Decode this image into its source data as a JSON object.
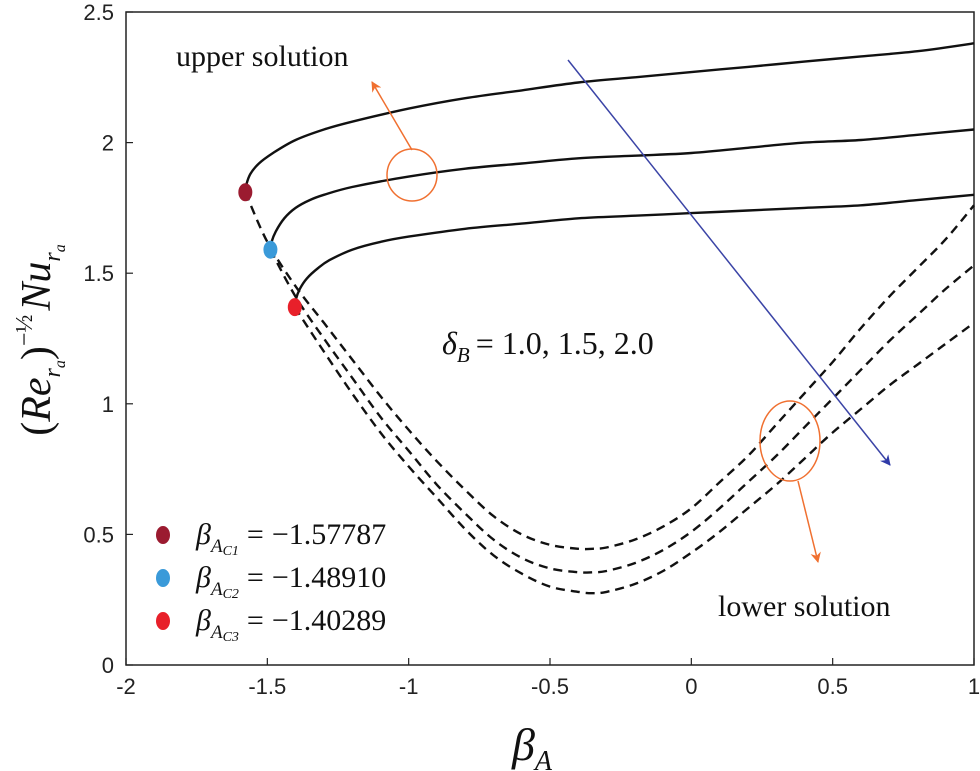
{
  "chart_data": {
    "type": "line",
    "xlabel": "β_A",
    "ylabel": "(Re_ra)^(-1/2) Nu_ra",
    "xlim": [
      -2,
      1
    ],
    "ylim": [
      0,
      2.5
    ],
    "xticks": [
      -2,
      -1.5,
      -1,
      -0.5,
      0,
      0.5,
      1
    ],
    "xtick_labels": [
      "-2",
      "-1.5",
      "-1",
      "-0.5",
      "0",
      "0.5",
      "1"
    ],
    "yticks": [
      0,
      0.5,
      1,
      1.5,
      2,
      2.5
    ],
    "ytick_labels": [
      "0",
      "0.5",
      "1",
      "1.5",
      "2",
      "2.5"
    ],
    "grid": false,
    "series": [
      {
        "name": "upper δB=1.0",
        "style": "solid",
        "x": [
          -1.5779,
          -1.574,
          -1.56,
          -1.53,
          -1.48,
          -1.4,
          -1.3,
          -1.2,
          -1.0,
          -0.8,
          -0.6,
          -0.4,
          -0.2,
          0,
          0.2,
          0.4,
          0.6,
          0.8,
          1.0
        ],
        "y": [
          1.81,
          1.84,
          1.88,
          1.92,
          1.96,
          2.01,
          2.05,
          2.08,
          2.13,
          2.17,
          2.2,
          2.23,
          2.25,
          2.27,
          2.29,
          2.31,
          2.33,
          2.35,
          2.38
        ]
      },
      {
        "name": "upper δB=1.5",
        "style": "solid",
        "x": [
          -1.4891,
          -1.485,
          -1.47,
          -1.44,
          -1.4,
          -1.35,
          -1.3,
          -1.2,
          -1.0,
          -0.8,
          -0.6,
          -0.4,
          -0.2,
          0,
          0.2,
          0.4,
          0.6,
          0.8,
          1.0
        ],
        "y": [
          1.59,
          1.62,
          1.66,
          1.71,
          1.75,
          1.78,
          1.8,
          1.83,
          1.87,
          1.9,
          1.92,
          1.94,
          1.95,
          1.96,
          1.98,
          2.0,
          2.01,
          2.03,
          2.05
        ]
      },
      {
        "name": "upper δB=2.0",
        "style": "solid",
        "x": [
          -1.4029,
          -1.399,
          -1.385,
          -1.36,
          -1.32,
          -1.28,
          -1.2,
          -1.1,
          -1.0,
          -0.8,
          -0.6,
          -0.4,
          -0.2,
          0,
          0.2,
          0.4,
          0.6,
          0.8,
          1.0
        ],
        "y": [
          1.37,
          1.4,
          1.44,
          1.48,
          1.52,
          1.55,
          1.59,
          1.62,
          1.64,
          1.67,
          1.69,
          1.71,
          1.72,
          1.73,
          1.74,
          1.75,
          1.76,
          1.78,
          1.8
        ]
      },
      {
        "name": "lower δB=1.0",
        "style": "dashed",
        "x": [
          -1.5779,
          -1.5,
          -1.4,
          -1.3,
          -1.2,
          -1.1,
          -1.0,
          -0.9,
          -0.8,
          -0.7,
          -0.6,
          -0.5,
          -0.4,
          -0.35,
          -0.3,
          -0.2,
          -0.1,
          0,
          0.1,
          0.2,
          0.3,
          0.4,
          0.5,
          0.6,
          0.7,
          0.8,
          0.9,
          1.0
        ],
        "y": [
          1.81,
          1.62,
          1.45,
          1.31,
          1.17,
          1.03,
          0.9,
          0.78,
          0.67,
          0.57,
          0.5,
          0.46,
          0.445,
          0.445,
          0.45,
          0.48,
          0.53,
          0.6,
          0.7,
          0.8,
          0.92,
          1.04,
          1.16,
          1.29,
          1.41,
          1.52,
          1.63,
          1.76
        ]
      },
      {
        "name": "lower δB=1.5",
        "style": "dashed",
        "x": [
          -1.4891,
          -1.4,
          -1.3,
          -1.2,
          -1.1,
          -1.0,
          -0.9,
          -0.8,
          -0.7,
          -0.6,
          -0.5,
          -0.4,
          -0.35,
          -0.3,
          -0.2,
          -0.1,
          0,
          0.1,
          0.2,
          0.3,
          0.4,
          0.5,
          0.6,
          0.7,
          0.8,
          0.9,
          1.0
        ],
        "y": [
          1.59,
          1.41,
          1.25,
          1.1,
          0.95,
          0.82,
          0.69,
          0.58,
          0.48,
          0.41,
          0.37,
          0.355,
          0.355,
          0.36,
          0.39,
          0.44,
          0.51,
          0.6,
          0.7,
          0.8,
          0.91,
          1.02,
          1.13,
          1.24,
          1.34,
          1.44,
          1.53
        ]
      },
      {
        "name": "lower δB=2.0",
        "style": "dashed",
        "x": [
          -1.4029,
          -1.3,
          -1.2,
          -1.1,
          -1.0,
          -0.9,
          -0.8,
          -0.7,
          -0.6,
          -0.5,
          -0.4,
          -0.35,
          -0.3,
          -0.2,
          -0.1,
          0,
          0.1,
          0.2,
          0.3,
          0.4,
          0.5,
          0.6,
          0.7,
          0.8,
          0.9,
          1.0
        ],
        "y": [
          1.37,
          1.2,
          1.04,
          0.89,
          0.76,
          0.64,
          0.52,
          0.42,
          0.35,
          0.3,
          0.28,
          0.275,
          0.28,
          0.31,
          0.36,
          0.43,
          0.51,
          0.6,
          0.69,
          0.79,
          0.89,
          0.98,
          1.07,
          1.15,
          1.23,
          1.31
        ]
      }
    ],
    "critical_points": [
      {
        "x": -1.57787,
        "y": 1.81,
        "color": "#9b1b30",
        "label": "−1.57787",
        "sub": "C1"
      },
      {
        "x": -1.4891,
        "y": 1.59,
        "color": "#3a9ad9",
        "label": "−1.48910",
        "sub": "C2"
      },
      {
        "x": -1.40289,
        "y": 1.37,
        "color": "#e8202a",
        "label": "−1.40289",
        "sub": "C3"
      }
    ],
    "annotations": {
      "upper": "upper solution",
      "lower": "lower solution",
      "delta_prefix": "δ",
      "delta_sub": "B",
      "delta_values": "= 1.0, 1.5, 2.0",
      "beta": "β",
      "beta_sub_A": "A",
      "equals": "="
    },
    "arrow_color": "#3b44a6",
    "marker_color": "#f07030"
  }
}
